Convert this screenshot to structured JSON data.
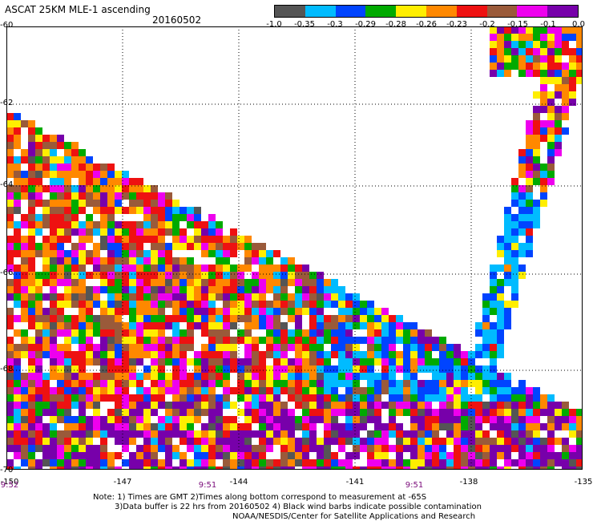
{
  "header": {
    "title": "ASCAT 25KM MLE-1 ascending",
    "date": "20160502"
  },
  "colorbar": {
    "colors": [
      "#555555",
      "#00bbff",
      "#0044ff",
      "#00aa00",
      "#ffee00",
      "#ff8800",
      "#ee1111",
      "#9a5a3a",
      "#ee00ee",
      "#7700aa"
    ],
    "labels": [
      "-1.0",
      "-0.35",
      "-0.3",
      "-0.29",
      "-0.28",
      "-0.26",
      "-0.23",
      "-0.2",
      "-0.15",
      "-0.1",
      "0.0"
    ]
  },
  "map": {
    "lat_labels": [
      "-60",
      "-62",
      "-64",
      "-66",
      "-68",
      "-70"
    ],
    "lon_labels": [
      "-150",
      "-147",
      "-144",
      "-141",
      "-138",
      "-135"
    ],
    "time_labels": [
      "9:52",
      "9:51",
      "9:51"
    ],
    "lat_range": [
      -70,
      -60
    ],
    "lon_range": [
      -150,
      -135
    ]
  },
  "footer": {
    "note_line1": "Note: 1) Times are GMT 2)Times along bottom correspond to measurement at -65S",
    "note_line2": "3)Data buffer is 22 hrs from 20160502 4) Black wind barbs indicate possible contamination",
    "note_line3": "NOAA/NESDIS/Center for Satellite Applications and Research"
  }
}
